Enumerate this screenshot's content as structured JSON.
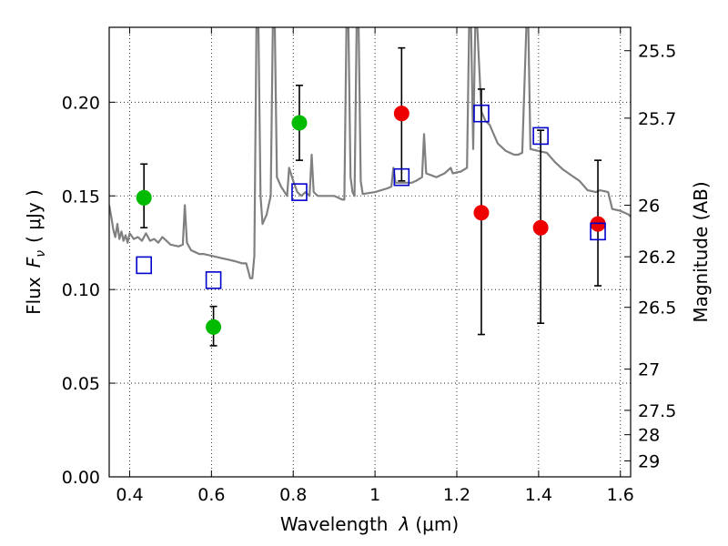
{
  "chart_data": {
    "type": "scatter",
    "title": "",
    "xlabel": "Wavelength",
    "xlabel_symbol": "λ",
    "xlabel_unit": "(μm)",
    "ylabel": "Flux",
    "ylabel_symbol": "F",
    "ylabel_subscript": "ν",
    "ylabel_unit": "( μJy )",
    "y2label": "Magnitude (AB)",
    "xlim": [
      0.35,
      1.625
    ],
    "ylim": [
      0.0,
      0.24
    ],
    "grid": true,
    "x_ticks": [
      {
        "value": 0.4,
        "label": "0.4"
      },
      {
        "value": 0.6,
        "label": "0.6"
      },
      {
        "value": 0.8,
        "label": "0.8"
      },
      {
        "value": 1.0,
        "label": "1"
      },
      {
        "value": 1.2,
        "label": "1.2"
      },
      {
        "value": 1.4,
        "label": "1.4"
      },
      {
        "value": 1.6,
        "label": "1.6"
      }
    ],
    "y_ticks": [
      {
        "value": 0.0,
        "label": "0.00"
      },
      {
        "value": 0.05,
        "label": "0.05"
      },
      {
        "value": 0.1,
        "label": "0.10"
      },
      {
        "value": 0.15,
        "label": "0.15"
      },
      {
        "value": 0.2,
        "label": "0.20"
      }
    ],
    "y2_ticks": [
      {
        "flux": 0.2275,
        "label": "25.5"
      },
      {
        "flux": 0.1915,
        "label": "25.7"
      },
      {
        "flux": 0.145,
        "label": "26"
      },
      {
        "flux": 0.1175,
        "label": "26.2"
      },
      {
        "flux": 0.0905,
        "label": "26.5"
      },
      {
        "flux": 0.0575,
        "label": "27"
      },
      {
        "flux": 0.0355,
        "label": "27.5"
      },
      {
        "flux": 0.0225,
        "label": "28"
      },
      {
        "flux": 0.0085,
        "label": "29"
      }
    ],
    "series": [
      {
        "name": "green-photometry",
        "marker": "circle",
        "color": "#00bb00",
        "points": [
          {
            "x": 0.435,
            "y": 0.149,
            "ylo": 0.133,
            "yhi": 0.167
          },
          {
            "x": 0.605,
            "y": 0.08,
            "ylo": 0.07,
            "yhi": 0.091
          },
          {
            "x": 0.815,
            "y": 0.189,
            "ylo": 0.169,
            "yhi": 0.209
          }
        ]
      },
      {
        "name": "red-photometry",
        "marker": "circle",
        "color": "#ee0000",
        "points": [
          {
            "x": 1.065,
            "y": 0.194,
            "ylo": 0.158,
            "yhi": 0.229
          },
          {
            "x": 1.26,
            "y": 0.141,
            "ylo": 0.076,
            "yhi": 0.207
          },
          {
            "x": 1.405,
            "y": 0.133,
            "ylo": 0.082,
            "yhi": 0.185
          },
          {
            "x": 1.545,
            "y": 0.135,
            "ylo": 0.102,
            "yhi": 0.169
          }
        ]
      },
      {
        "name": "model-photometry",
        "marker": "square",
        "color": "#0000cc",
        "points": [
          {
            "x": 0.435,
            "y": 0.113
          },
          {
            "x": 0.605,
            "y": 0.105
          },
          {
            "x": 0.815,
            "y": 0.152
          },
          {
            "x": 1.065,
            "y": 0.16
          },
          {
            "x": 1.26,
            "y": 0.194
          },
          {
            "x": 1.405,
            "y": 0.182
          },
          {
            "x": 1.545,
            "y": 0.131
          }
        ]
      }
    ],
    "model_spectrum": {
      "name": "model-spectrum",
      "color": "#808080",
      "points": [
        [
          0.35,
          0.145
        ],
        [
          0.355,
          0.139
        ],
        [
          0.36,
          0.132
        ],
        [
          0.365,
          0.128
        ],
        [
          0.37,
          0.135
        ],
        [
          0.375,
          0.127
        ],
        [
          0.38,
          0.131
        ],
        [
          0.385,
          0.126
        ],
        [
          0.39,
          0.129
        ],
        [
          0.395,
          0.125
        ],
        [
          0.4,
          0.13
        ],
        [
          0.41,
          0.127
        ],
        [
          0.42,
          0.128
        ],
        [
          0.43,
          0.126
        ],
        [
          0.44,
          0.13
        ],
        [
          0.45,
          0.126
        ],
        [
          0.46,
          0.127
        ],
        [
          0.47,
          0.125
        ],
        [
          0.48,
          0.128
        ],
        [
          0.49,
          0.126
        ],
        [
          0.5,
          0.124
        ],
        [
          0.52,
          0.123
        ],
        [
          0.53,
          0.124
        ],
        [
          0.535,
          0.145
        ],
        [
          0.54,
          0.125
        ],
        [
          0.55,
          0.121
        ],
        [
          0.56,
          0.12
        ],
        [
          0.57,
          0.119
        ],
        [
          0.58,
          0.119
        ],
        [
          0.6,
          0.118
        ],
        [
          0.62,
          0.117
        ],
        [
          0.64,
          0.116
        ],
        [
          0.66,
          0.115
        ],
        [
          0.675,
          0.114
        ],
        [
          0.685,
          0.114
        ],
        [
          0.695,
          0.106
        ],
        [
          0.7,
          0.106
        ],
        [
          0.705,
          0.118
        ],
        [
          0.71,
          0.24
        ],
        [
          0.715,
          0.24
        ],
        [
          0.72,
          0.15
        ],
        [
          0.725,
          0.135
        ],
        [
          0.735,
          0.14
        ],
        [
          0.745,
          0.15
        ],
        [
          0.75,
          0.24
        ],
        [
          0.755,
          0.24
        ],
        [
          0.76,
          0.16
        ],
        [
          0.77,
          0.155
        ],
        [
          0.785,
          0.15
        ],
        [
          0.79,
          0.165
        ],
        [
          0.8,
          0.158
        ],
        [
          0.81,
          0.152
        ],
        [
          0.82,
          0.15
        ],
        [
          0.83,
          0.152
        ],
        [
          0.84,
          0.15
        ],
        [
          0.845,
          0.172
        ],
        [
          0.85,
          0.152
        ],
        [
          0.86,
          0.15
        ],
        [
          0.88,
          0.15
        ],
        [
          0.9,
          0.15
        ],
        [
          0.92,
          0.148
        ],
        [
          0.925,
          0.148
        ],
        [
          0.93,
          0.24
        ],
        [
          0.935,
          0.24
        ],
        [
          0.94,
          0.16
        ],
        [
          0.945,
          0.152
        ],
        [
          0.95,
          0.15
        ],
        [
          0.955,
          0.24
        ],
        [
          0.96,
          0.24
        ],
        [
          0.965,
          0.158
        ],
        [
          0.97,
          0.151
        ],
        [
          1.0,
          0.152
        ],
        [
          1.03,
          0.154
        ],
        [
          1.04,
          0.155
        ],
        [
          1.045,
          0.165
        ],
        [
          1.05,
          0.157
        ],
        [
          1.09,
          0.157
        ],
        [
          1.1,
          0.158
        ],
        [
          1.115,
          0.16
        ],
        [
          1.12,
          0.183
        ],
        [
          1.125,
          0.162
        ],
        [
          1.15,
          0.16
        ],
        [
          1.17,
          0.162
        ],
        [
          1.185,
          0.165
        ],
        [
          1.19,
          0.162
        ],
        [
          1.21,
          0.163
        ],
        [
          1.225,
          0.165
        ],
        [
          1.23,
          0.24
        ],
        [
          1.235,
          0.24
        ],
        [
          1.24,
          0.175
        ],
        [
          1.245,
          0.24
        ],
        [
          1.25,
          0.24
        ],
        [
          1.26,
          0.195
        ],
        [
          1.27,
          0.19
        ],
        [
          1.28,
          0.188
        ],
        [
          1.3,
          0.178
        ],
        [
          1.32,
          0.174
        ],
        [
          1.34,
          0.172
        ],
        [
          1.35,
          0.172
        ],
        [
          1.36,
          0.173
        ],
        [
          1.37,
          0.24
        ],
        [
          1.375,
          0.24
        ],
        [
          1.38,
          0.175
        ],
        [
          1.4,
          0.174
        ],
        [
          1.42,
          0.173
        ],
        [
          1.44,
          0.168
        ],
        [
          1.46,
          0.164
        ],
        [
          1.48,
          0.161
        ],
        [
          1.5,
          0.158
        ],
        [
          1.52,
          0.153
        ],
        [
          1.54,
          0.152
        ],
        [
          1.55,
          0.153
        ],
        [
          1.57,
          0.152
        ],
        [
          1.58,
          0.143
        ],
        [
          1.6,
          0.142
        ],
        [
          1.62,
          0.14
        ],
        [
          1.625,
          0.139
        ]
      ]
    }
  }
}
